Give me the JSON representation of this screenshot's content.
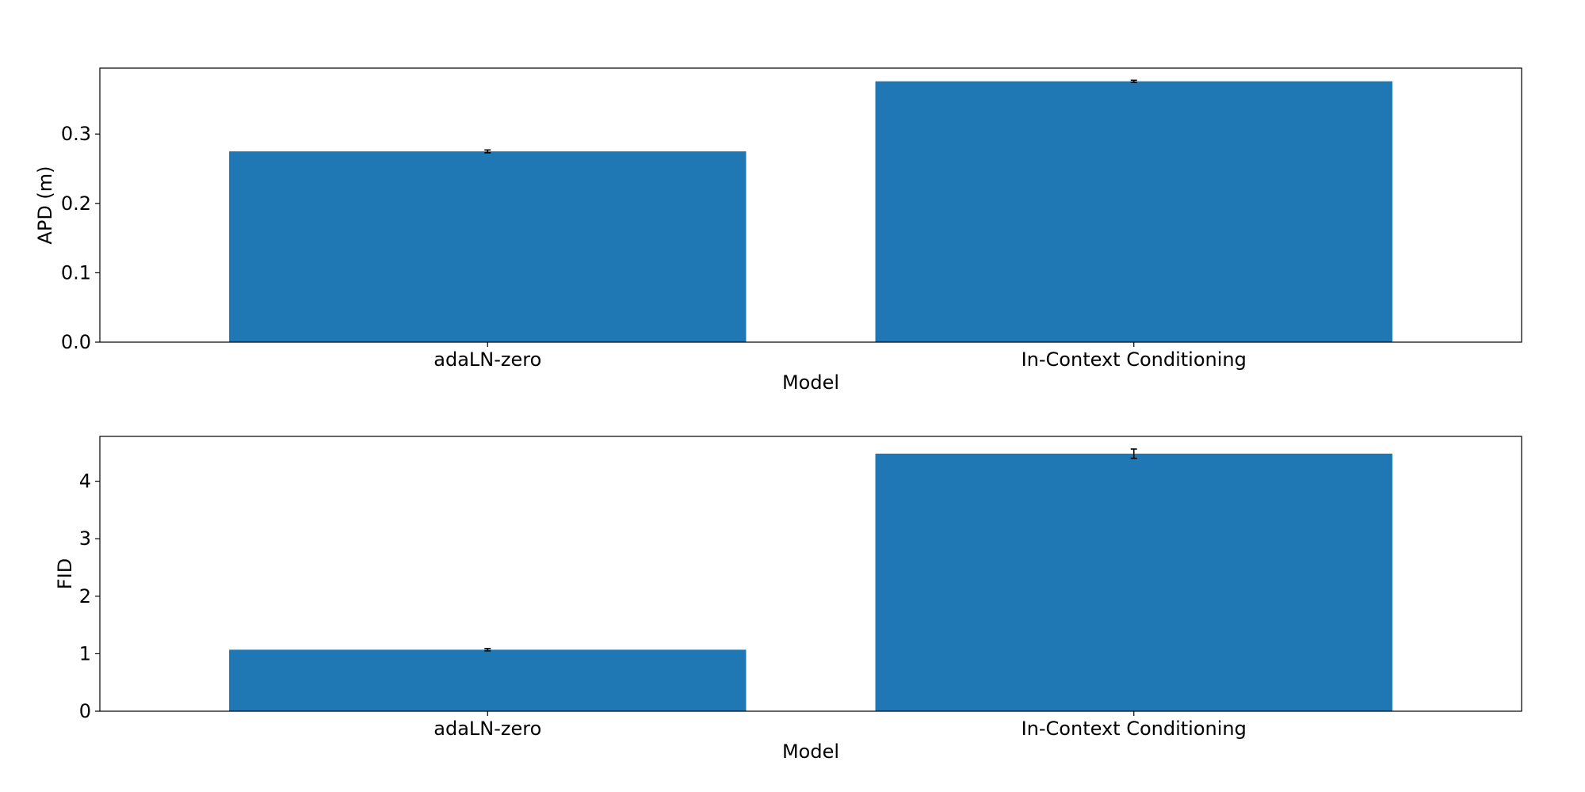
{
  "chart_data": [
    {
      "type": "bar",
      "title": "",
      "xlabel": "Model",
      "ylabel": "APD (m)",
      "categories": [
        "adaLN-zero",
        "In-Context Conditioning"
      ],
      "values": [
        0.275,
        0.376
      ],
      "errors": [
        0.002,
        0.0015
      ],
      "ylim": [
        0,
        0.395
      ],
      "yticks": [
        0.0,
        0.1,
        0.2,
        0.3
      ],
      "ytick_labels": [
        "0.0",
        "0.1",
        "0.2",
        "0.3"
      ],
      "color": "#1f77b4",
      "grid": false
    },
    {
      "type": "bar",
      "title": "",
      "xlabel": "Model",
      "ylabel": "FID",
      "categories": [
        "adaLN-zero",
        "In-Context Conditioning"
      ],
      "values": [
        1.07,
        4.48
      ],
      "errors": [
        0.02,
        0.08
      ],
      "ylim": [
        0,
        4.78
      ],
      "yticks": [
        0,
        1,
        2,
        3,
        4
      ],
      "ytick_labels": [
        "0",
        "1",
        "2",
        "3",
        "4"
      ],
      "color": "#1f77b4",
      "grid": false
    }
  ]
}
